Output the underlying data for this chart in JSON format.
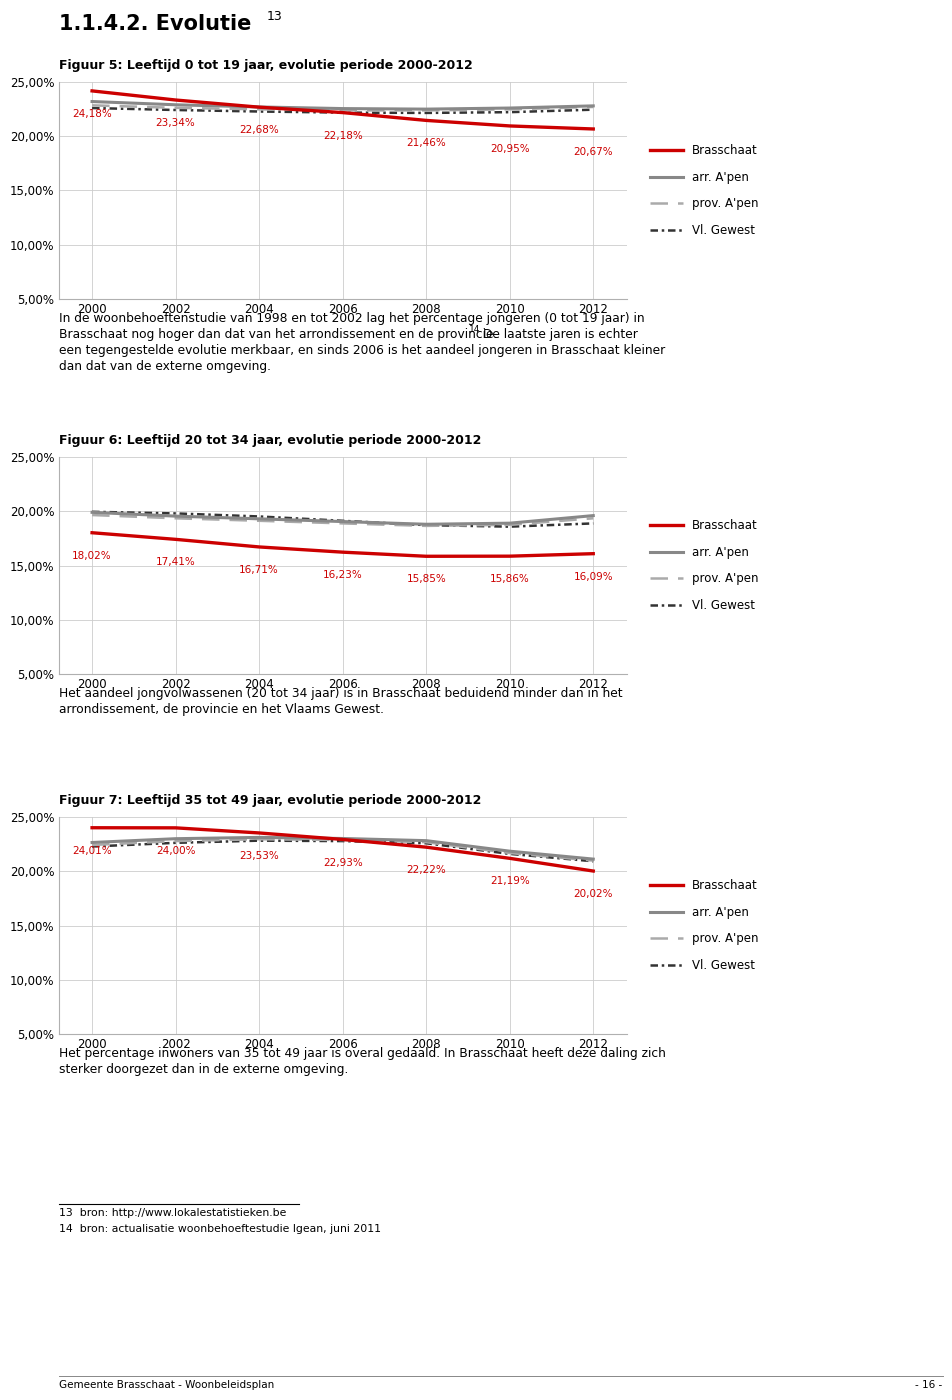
{
  "page_title": "1.1.4.2. Evolutie",
  "page_title_superscript": "13",
  "years": [
    2000,
    2002,
    2004,
    2006,
    2008,
    2010,
    2012
  ],
  "chart1": {
    "title": "Figuur 5: Leeftijd 0 tot 19 jaar, evolutie periode 2000-2012",
    "brasschaat": [
      24.18,
      23.34,
      22.68,
      22.18,
      21.46,
      20.95,
      20.67
    ],
    "arr_apen": [
      23.2,
      22.9,
      22.7,
      22.55,
      22.5,
      22.6,
      22.8
    ],
    "prov_apen": [
      22.85,
      22.62,
      22.48,
      22.38,
      22.38,
      22.48,
      22.7
    ],
    "vl_gewest": [
      22.6,
      22.42,
      22.28,
      22.18,
      22.15,
      22.22,
      22.45
    ],
    "ylim": [
      5.0,
      25.0
    ],
    "yticks": [
      5.0,
      10.0,
      15.0,
      20.0,
      25.0
    ],
    "text_line1": "In de woonbehoeftenstudie van 1998 en tot 2002 lag het percentage jongeren (0 tot 19 jaar) in",
    "text_line2": "Brasschaat nog hoger dan dat van het arrondissement en de provincie.",
    "text_sup14": " 14",
    "text_line3": " De laatste jaren is echter",
    "text_line4": "een tegengestelde evolutie merkbaar, en sinds 2006 is het aandeel jongeren in Brasschaat kleiner",
    "text_line5": "dan dat van de externe omgeving."
  },
  "chart2": {
    "title": "Figuur 6: Leeftijd 20 tot 34 jaar, evolutie periode 2000-2012",
    "brasschaat": [
      18.02,
      17.41,
      16.71,
      16.23,
      15.85,
      15.86,
      16.09
    ],
    "arr_apen": [
      19.9,
      19.55,
      19.3,
      19.05,
      18.8,
      18.9,
      19.6
    ],
    "prov_apen": [
      19.65,
      19.35,
      19.12,
      18.88,
      18.65,
      18.75,
      19.35
    ],
    "vl_gewest": [
      19.95,
      19.8,
      19.52,
      19.12,
      18.72,
      18.58,
      18.88
    ],
    "ylim": [
      5.0,
      25.0
    ],
    "yticks": [
      5.0,
      10.0,
      15.0,
      20.0,
      25.0
    ],
    "text_line1": "Het aandeel jongvolwassenen (20 tot 34 jaar) is in Brasschaat beduidend minder dan in het",
    "text_line2": "arrondissement, de provincie en het Vlaams Gewest."
  },
  "chart3": {
    "title": "Figuur 7: Leeftijd 35 tot 49 jaar, evolutie periode 2000-2012",
    "brasschaat": [
      24.01,
      24.0,
      23.53,
      22.93,
      22.22,
      21.19,
      20.02
    ],
    "arr_apen": [
      22.65,
      23.0,
      23.12,
      23.02,
      22.82,
      21.85,
      21.12
    ],
    "prov_apen": [
      22.42,
      22.78,
      22.95,
      22.88,
      22.68,
      21.68,
      20.98
    ],
    "vl_gewest": [
      22.28,
      22.62,
      22.82,
      22.78,
      22.58,
      21.6,
      20.92
    ],
    "ylim": [
      5.0,
      25.0
    ],
    "yticks": [
      5.0,
      10.0,
      15.0,
      20.0,
      25.0
    ],
    "text_line1": "Het percentage inwoners van 35 tot 49 jaar is overal gedaald. In Brasschaat heeft deze daling zich",
    "text_line2": "sterker doorgezet dan in de externe omgeving."
  },
  "line_colors": {
    "brasschaat": "#cc0000",
    "arr_apen": "#888888",
    "prov_apen": "#aaaaaa",
    "vl_gewest": "#333333"
  },
  "footnotes": [
    "bron: http://www.lokalestatistieken.be",
    "bron: actualisatie woonbehoeftestudie lgean, juni 2011"
  ],
  "footer_left": "Gemeente Brasschaat - Woonbeleidsplan",
  "footer_right": "- 16 -"
}
